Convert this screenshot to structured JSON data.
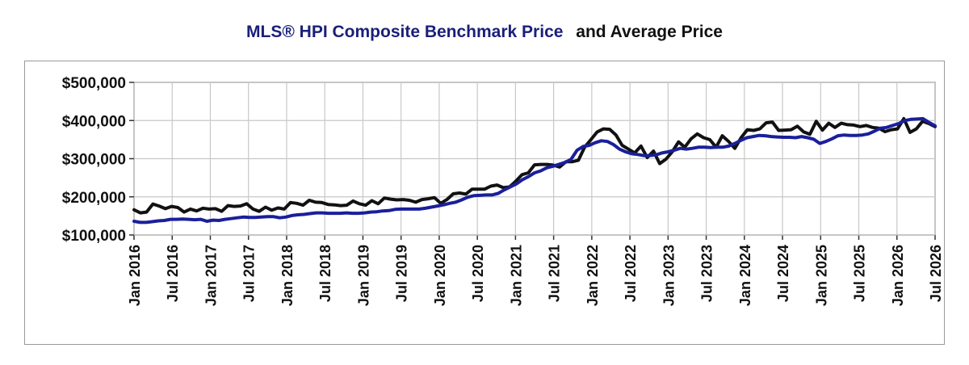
{
  "title": {
    "part1": "MLS® HPI Composite Benchmark Price",
    "part2": "and Average Price"
  },
  "colors": {
    "benchmark": "#1a1f9a",
    "average": "#111111",
    "grid": "#c8c8c8",
    "axis": "#8a8a8a"
  },
  "chart_data": {
    "type": "line",
    "title": "MLS® HPI Composite Benchmark Price and Average Price",
    "xlabel": "",
    "ylabel": "",
    "ylim": [
      100000,
      500000
    ],
    "yticks": [
      100000,
      200000,
      300000,
      400000,
      500000
    ],
    "ytick_labels": [
      "$100,000",
      "$200,000",
      "$300,000",
      "$400,000",
      "$500,000"
    ],
    "x_tick_labels": [
      "Jan 2016",
      "Jul 2016",
      "Jan 2017",
      "Jul 2017",
      "Jan 2018",
      "Jul 2018",
      "Jan 2019",
      "Jul 2019",
      "Jan 2020",
      "Jul 2020",
      "Jan 2021",
      "Jul 2021",
      "Jan 2022",
      "Jul 2022",
      "Jan 2023",
      "Jul 2023",
      "Jan 2024",
      "Jul 2024",
      "Jan 2025",
      "Jul 2025",
      "Jan 2026",
      "Jul 2026"
    ],
    "grid": true,
    "series": [
      {
        "color": "#111111",
        "values": [
          166000,
          158000,
          160000,
          181000,
          176000,
          169000,
          175000,
          172000,
          160000,
          168000,
          163000,
          170000,
          168000,
          169000,
          162000,
          177000,
          175000,
          176000,
          182000,
          168000,
          162000,
          173000,
          165000,
          171000,
          168000,
          185000,
          183000,
          178000,
          191000,
          186000,
          185000,
          180000,
          179000,
          177000,
          178000,
          189000,
          182000,
          178000,
          190000,
          182000,
          197000,
          194000,
          192000,
          193000,
          191000,
          186000,
          193000,
          195000,
          198000,
          183000,
          193000,
          208000,
          210000,
          207000,
          220000,
          220000,
          220000,
          228000,
          231000,
          224000,
          226000,
          241000,
          258000,
          263000,
          284000,
          285000,
          285000,
          283000,
          278000,
          292000,
          292000,
          296000,
          330000,
          350000,
          370000,
          378000,
          377000,
          362000,
          335000,
          325000,
          315000,
          333000,
          303000,
          320000,
          287000,
          299000,
          318000,
          344000,
          330000,
          352000,
          365000,
          355000,
          350000,
          330000,
          360000,
          345000,
          327000,
          355000,
          376000,
          374000,
          378000,
          394000,
          396000,
          374000,
          375000,
          376000,
          385000,
          370000,
          364000,
          398000,
          375000,
          393000,
          382000,
          393000,
          389000,
          388000,
          384000,
          387000,
          382000,
          380000,
          371000,
          376000,
          378000,
          405000,
          369000,
          378000,
          398000,
          392000,
          384000
        ]
      },
      {
        "color": "#1a1f9a",
        "values": [
          136000,
          133000,
          133000,
          135000,
          137000,
          138000,
          141000,
          141000,
          142000,
          141000,
          140000,
          141000,
          136000,
          139000,
          138000,
          141000,
          143000,
          145000,
          147000,
          146000,
          146000,
          147000,
          148000,
          148000,
          145000,
          147000,
          151000,
          153000,
          154000,
          156000,
          158000,
          158000,
          157000,
          157000,
          157000,
          158000,
          157000,
          157000,
          158000,
          160000,
          161000,
          163000,
          164000,
          167000,
          168000,
          168000,
          168000,
          168000,
          170000,
          173000,
          176000,
          179000,
          183000,
          186000,
          192000,
          199000,
          203000,
          204000,
          205000,
          205000,
          209000,
          218000,
          226000,
          234000,
          245000,
          253000,
          263000,
          268000,
          276000,
          280000,
          285000,
          290000,
          298000,
          322000,
          332000,
          335000,
          342000,
          347000,
          345000,
          337000,
          325000,
          318000,
          313000,
          311000,
          308000,
          308000,
          310000,
          315000,
          318000,
          322000,
          327000,
          325000,
          327000,
          330000,
          330000,
          329000,
          330000,
          330000,
          333000,
          340000,
          348000,
          355000,
          358000,
          361000,
          360000,
          358000,
          357000,
          356000,
          356000,
          355000,
          358000,
          355000,
          351000,
          340000,
          345000,
          352000,
          360000,
          362000,
          361000,
          361000,
          362000,
          365000,
          372000,
          380000,
          382000,
          387000,
          392000,
          400000,
          403000,
          404000,
          405000,
          395000,
          386000
        ]
      }
    ]
  }
}
